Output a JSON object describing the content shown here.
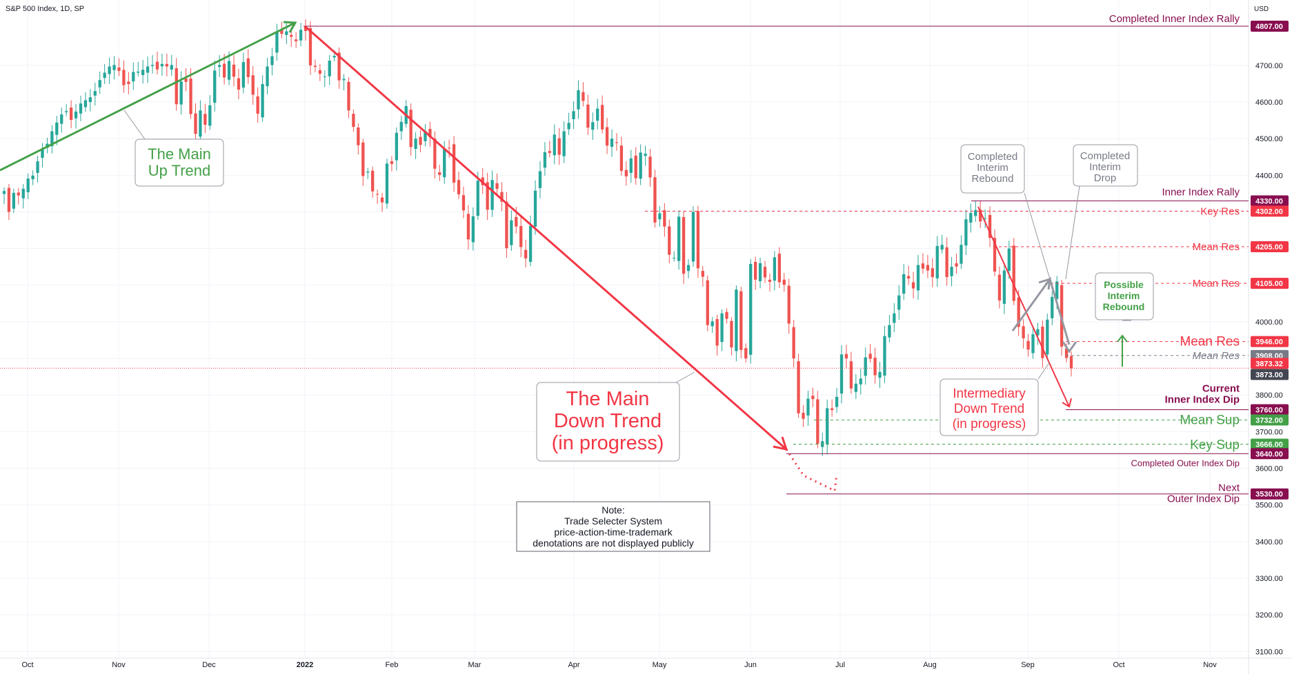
{
  "title": "S&P 500 Index, 1D, SP",
  "currency": "USD",
  "colors": {
    "up": "#26a69a",
    "down": "#ef5350",
    "purple": "#880e4f",
    "red_label": "#f23645",
    "green_label": "#43a047",
    "gray_label": "#787b86",
    "dark_label": "#434651"
  },
  "chart_data": {
    "type": "candlestick",
    "title": "S&P 500 Index, 1D, SP",
    "ylabel": "USD",
    "ylim": [
      3070,
      4900
    ],
    "grid": true,
    "x_ticks": [
      "Oct",
      "Nov",
      "Dec",
      "2022",
      "Feb",
      "Mar",
      "Apr",
      "May",
      "Jun",
      "Jul",
      "Aug",
      "Sep",
      "Oct",
      "Nov"
    ],
    "y_ticks": [
      "4700.00",
      "4600.00",
      "4500.00",
      "4400.00",
      "4000.00",
      "3800.00",
      "3700.00",
      "3600.00",
      "3500.00",
      "3400.00",
      "3300.00",
      "3200.00",
      "3100.00"
    ],
    "last_price": 3873.32,
    "candles_close": [
      4357,
      4300,
      4352,
      4345,
      4363,
      4391,
      4399,
      4438,
      4472,
      4486,
      4520,
      4544,
      4566,
      4575,
      4551,
      4574,
      4596,
      4605,
      4613,
      4630,
      4660,
      4680,
      4697,
      4701,
      4685,
      4646,
      4649,
      4682,
      4683,
      4688,
      4697,
      4701,
      4689,
      4704,
      4697,
      4701,
      4594,
      4656,
      4655,
      4567,
      4513,
      4577,
      4538,
      4591,
      4686,
      4701,
      4667,
      4712,
      4669,
      4634,
      4709,
      4668,
      4620,
      4568,
      4649,
      4697,
      4725,
      4791,
      4786,
      4793,
      4778,
      4766,
      4797,
      4794,
      4700,
      4696,
      4677,
      4670,
      4713,
      4726,
      4659,
      4663,
      4577,
      4532,
      4482,
      4398,
      4410,
      4356,
      4349,
      4326,
      4432,
      4431,
      4516,
      4546,
      4589,
      4477,
      4500,
      4483,
      4521,
      4504,
      4418,
      4401,
      4472,
      4475,
      4380,
      4348,
      4304,
      4225,
      4288,
      4385,
      4373,
      4306,
      4387,
      4363,
      4328,
      4201,
      4277,
      4260,
      4204,
      4173,
      4262,
      4358,
      4411,
      4463,
      4461,
      4511,
      4456,
      4520,
      4543,
      4575,
      4632,
      4603,
      4530,
      4545,
      4582,
      4525,
      4481,
      4500,
      4488,
      4412,
      4397,
      4446,
      4392,
      4462,
      4459,
      4394,
      4271,
      4296,
      4260,
      4183,
      4175,
      4287,
      4131,
      4155,
      4300,
      4146,
      4123,
      3991,
      4001,
      3935,
      4023,
      4008,
      3930,
      4088,
      3923,
      3900,
      4158,
      4115,
      4160,
      4121,
      4109,
      4176,
      4108,
      4101,
      3995,
      3900,
      3750,
      3735,
      3790,
      3789,
      3667,
      3674,
      3764,
      3759,
      3795,
      3911,
      3900,
      3818,
      3831,
      3845,
      3903,
      3899,
      3854,
      3863,
      3961,
      3991,
      4023,
      4072,
      4130,
      4118,
      4091,
      4155,
      4145,
      4140,
      4122,
      4207,
      4210,
      4122,
      4150,
      4151,
      4210,
      4280,
      4297,
      4305,
      4274,
      4283,
      4229,
      4137,
      4058,
      4140,
      4200,
      4057,
      3986,
      3955,
      3924,
      3966,
      3980,
      3901,
      4006,
      4068,
      4110,
      3932,
      3901,
      3873
    ]
  },
  "y_axis_labels": [
    {
      "price": 4807,
      "text": "4807.00",
      "style": "purple"
    },
    {
      "price": 4330,
      "text": "4330.00",
      "style": "purple"
    },
    {
      "price": 4302,
      "text": "4302.00",
      "style": "red"
    },
    {
      "price": 4205,
      "text": "4205.00",
      "style": "red"
    },
    {
      "price": 4105,
      "text": "4105.00",
      "style": "red"
    },
    {
      "price": 3946,
      "text": "3946.00",
      "style": "red"
    },
    {
      "price": 3908,
      "text": "3908.00",
      "style": "gray"
    },
    {
      "price": 3873.32,
      "text": "3873.32",
      "style": "red"
    },
    {
      "price": 3873,
      "text": "3873.00",
      "style": "dark"
    },
    {
      "price": 3760,
      "text": "3760.00",
      "style": "purple"
    },
    {
      "price": 3732,
      "text": "3732.00",
      "style": "green"
    },
    {
      "price": 3666,
      "text": "3666.00",
      "style": "green"
    },
    {
      "price": 3640,
      "text": "3640.00",
      "style": "purple"
    },
    {
      "price": 3530,
      "text": "3530.00",
      "style": "purple"
    }
  ],
  "levels": {
    "completed_inner_rally": "Completed Inner Index Rally",
    "inner_rally": "Inner Index Rally",
    "key_res": "Key Res",
    "mean_res_4205": "Mean Res",
    "mean_res_4105": "Mean Res",
    "mean_res_3946": "Mean Res",
    "mean_res_3908": "Mean Res",
    "current_dip": "Current\nInner Index Dip",
    "mean_sup": "Mean Sup",
    "key_sup": "Key Sup",
    "completed_outer_dip": "Completed Outer Index Dip",
    "next_outer_dip": "Next\nOuter Index Dip"
  },
  "callouts": {
    "up_trend": "The Main\nUp Trend",
    "down_trend": "The Main\nDown Trend\n(in progress)",
    "interim_rebound": "Completed\nInterim\nRebound",
    "interim_drop": "Completed\nInterim\nDrop",
    "possible_rebound": "Possible\nInterim\nRebound",
    "intermediary": "Intermediary\nDown Trend\n(in progress)",
    "note": "Note:\nTrade Selecter System\nprice-action-time-trademark\ndenotations are not displayed publicly"
  }
}
